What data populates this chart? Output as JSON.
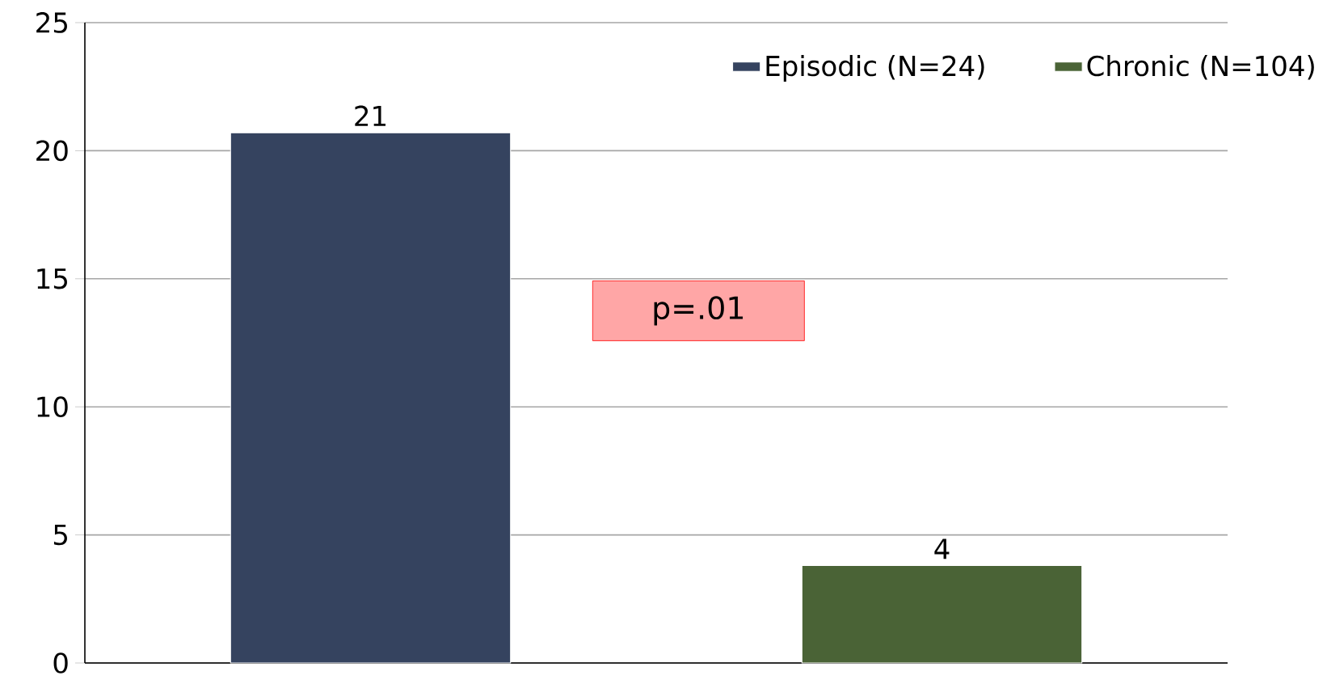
{
  "chart_data": {
    "type": "bar",
    "categories": [
      null,
      null
    ],
    "series": [
      {
        "name": "Episodic (N=24)",
        "color": "#35435f",
        "values": [
          20.7,
          null
        ],
        "value_labels": [
          "21",
          null
        ]
      },
      {
        "name": "Chronic (N=104)",
        "color": "#4a6336",
        "values": [
          null,
          3.8
        ],
        "value_labels": [
          null,
          "4"
        ]
      }
    ],
    "ylim": [
      0,
      25
    ],
    "yticks": [
      0,
      5,
      10,
      15,
      20,
      25
    ],
    "grid": "y",
    "legend": "top right",
    "tick_labels": "y",
    "annotations": [
      "p=.01"
    ]
  }
}
